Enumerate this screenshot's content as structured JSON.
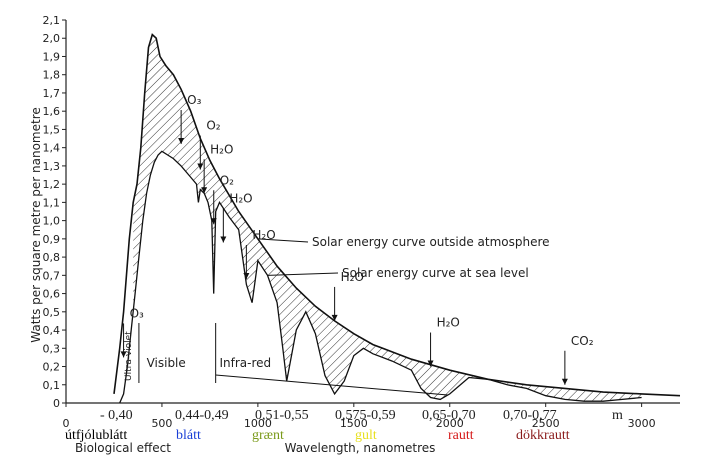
{
  "chart_data": {
    "type": "line",
    "title": "",
    "xlabel": "Wavelength, nanometres",
    "ylabel": "Watts per square metre per nanometre",
    "xlim": [
      0,
      3200
    ],
    "ylim": [
      0,
      2.1
    ],
    "x_ticks": [
      0,
      500,
      1000,
      1500,
      2000,
      2500,
      3000
    ],
    "x_tick_labels": [
      "0",
      "500",
      "1000",
      "1500",
      "2000",
      "2500",
      "3000"
    ],
    "y_ticks": [
      0,
      0.1,
      0.2,
      0.3,
      0.4,
      0.5,
      0.6,
      0.7,
      0.8,
      0.9,
      1.0,
      1.1,
      1.2,
      1.3,
      1.4,
      1.5,
      1.6,
      1.7,
      1.8,
      1.9,
      2.0,
      2.1
    ],
    "y_tick_labels": [
      "0",
      "0,1",
      "0,2",
      "0,3",
      "0,4",
      "0,5",
      "0,6",
      "0,7",
      "0,8",
      "0,9",
      "1,0",
      "1,1",
      "1,2",
      "1,3",
      "1,4",
      "1,5",
      "1,6",
      "1,7",
      "1,8",
      "1,9",
      "2,0",
      "2,1"
    ],
    "series": [
      {
        "name": "Solar energy curve outside atmosphere",
        "x": [
          250,
          280,
          300,
          330,
          350,
          370,
          390,
          410,
          430,
          450,
          470,
          490,
          520,
          560,
          600,
          650,
          700,
          750,
          800,
          900,
          1000,
          1100,
          1200,
          1300,
          1400,
          1500,
          1600,
          1800,
          2000,
          2200,
          2400,
          2600,
          2800,
          3000,
          3200
        ],
        "y": [
          0.05,
          0.3,
          0.5,
          0.9,
          1.1,
          1.2,
          1.4,
          1.7,
          1.95,
          2.02,
          2.0,
          1.9,
          1.85,
          1.8,
          1.72,
          1.6,
          1.45,
          1.33,
          1.23,
          1.05,
          0.9,
          0.75,
          0.63,
          0.53,
          0.45,
          0.38,
          0.32,
          0.24,
          0.18,
          0.13,
          0.1,
          0.08,
          0.06,
          0.05,
          0.04
        ]
      },
      {
        "name": "Solar energy curve at sea level",
        "x": [
          280,
          300,
          320,
          340,
          360,
          380,
          400,
          420,
          440,
          460,
          480,
          500,
          530,
          560,
          600,
          640,
          680,
          690,
          700,
          720,
          740,
          760,
          770,
          780,
          800,
          850,
          900,
          940,
          970,
          1000,
          1050,
          1100,
          1130,
          1150,
          1200,
          1250,
          1300,
          1350,
          1400,
          1450,
          1500,
          1550,
          1600,
          1700,
          1800,
          1850,
          1900,
          1950,
          2000,
          2100,
          2200,
          2300,
          2400,
          2500,
          2600,
          2700,
          2800,
          2900,
          3000
        ],
        "y": [
          0,
          0.05,
          0.2,
          0.4,
          0.6,
          0.8,
          1.0,
          1.15,
          1.25,
          1.32,
          1.36,
          1.38,
          1.36,
          1.34,
          1.3,
          1.25,
          1.2,
          1.1,
          1.17,
          1.15,
          1.1,
          1.0,
          0.6,
          1.05,
          1.1,
          1.02,
          0.95,
          0.65,
          0.55,
          0.78,
          0.7,
          0.55,
          0.3,
          0.12,
          0.4,
          0.5,
          0.38,
          0.15,
          0.05,
          0.12,
          0.26,
          0.3,
          0.27,
          0.23,
          0.18,
          0.08,
          0.03,
          0.02,
          0.05,
          0.14,
          0.13,
          0.1,
          0.08,
          0.04,
          0.02,
          0.01,
          0.01,
          0.02,
          0.03
        ]
      }
    ],
    "annotations": [
      {
        "label": "O₃",
        "x": 600,
        "y": 1.42
      },
      {
        "label": "O₂",
        "x": 700,
        "y": 1.28
      },
      {
        "label": "H₂O",
        "x": 720,
        "y": 1.15
      },
      {
        "label": "O₂",
        "x": 770,
        "y": 0.98
      },
      {
        "label": "H₂O",
        "x": 820,
        "y": 0.88
      },
      {
        "label": "H₂O",
        "x": 940,
        "y": 0.68
      },
      {
        "label": "H₂O",
        "x": 1400,
        "y": 0.45
      },
      {
        "label": "H₂O",
        "x": 1900,
        "y": 0.2
      },
      {
        "label": "CO₂",
        "x": 2600,
        "y": 0.1
      },
      {
        "label": "O₃",
        "x": 300,
        "y": 0.25
      }
    ],
    "region_labels": [
      "Ultra-violet",
      "Visible",
      "Infra-red"
    ],
    "biological_label": "Biological effect",
    "band_row": [
      "- 0,40",
      "0,44-0,49",
      "0,51-0,55",
      "0,575-0,59",
      "0,65-0,70",
      "0,70-0,77",
      "m"
    ],
    "color_row": [
      {
        "text": "útfjólublátt",
        "color": "#000000"
      },
      {
        "text": "blátt",
        "color": "#1a3fd6"
      },
      {
        "text": "grænt",
        "color": "#7a9a1a"
      },
      {
        "text": "gult",
        "color": "#e8e020"
      },
      {
        "text": "rautt",
        "color": "#d61a1a"
      },
      {
        "text": "dökkrautt",
        "color": "#8a1a1a"
      }
    ]
  }
}
